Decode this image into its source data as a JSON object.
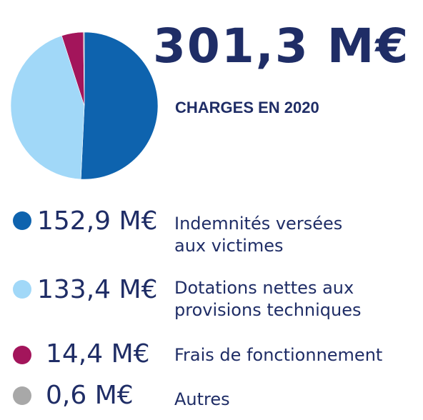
{
  "header": {
    "total": "301,3 M€",
    "subtitle": "CHARGES EN 2020"
  },
  "chart_data": {
    "type": "pie",
    "title": "",
    "slices": [
      {
        "label_line1": "Indemnités versées",
        "label_line2": "aux victimes",
        "value": 152.9,
        "value_text": "152,9 M€",
        "color": "#0e63ae"
      },
      {
        "label_line1": "Dotations nettes aux",
        "label_line2": "provisions techniques",
        "value": 133.4,
        "value_text": "133,4 M€",
        "color": "#a1d8f8"
      },
      {
        "label_line1": "Frais de fonctionnement",
        "label_line2": "",
        "value": 14.4,
        "value_text": "14,4 M€",
        "color": "#a3155b"
      },
      {
        "label_line1": "Autres",
        "label_line2": "",
        "value": 0.6,
        "value_text": "0,6 M€",
        "color": "#a8a8a8"
      }
    ]
  }
}
